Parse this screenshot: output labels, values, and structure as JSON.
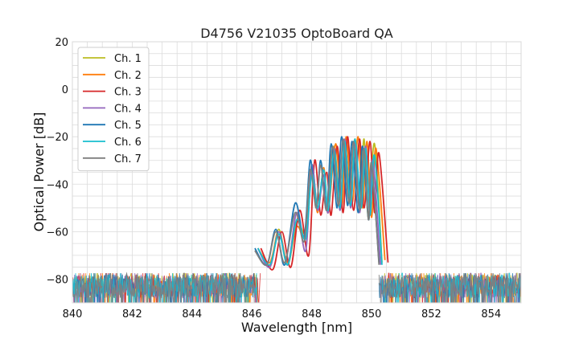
{
  "chart_data": {
    "type": "line",
    "title": "D4756 V21035 OptoBoard QA",
    "xlabel": "Wavelength [nm]",
    "ylabel": "Optical Power [dB]",
    "xlim": [
      840,
      855
    ],
    "ylim": [
      -90,
      20
    ],
    "xticks": [
      840,
      842,
      844,
      846,
      848,
      850,
      852,
      854
    ],
    "yticks": [
      -80,
      -60,
      -40,
      -20,
      0,
      20
    ],
    "xtick_labels": [
      "840",
      "842",
      "844",
      "846",
      "848",
      "850",
      "852",
      "854"
    ],
    "ytick_labels": [
      "−80",
      "−60",
      "−40",
      "−20",
      "0",
      "20"
    ],
    "grid": true,
    "legend_position": "top-left",
    "noise_floor": {
      "mean": -83,
      "spread": 10
    },
    "series": [
      {
        "name": "Ch. 1",
        "color": "#bcbd22",
        "points": [
          [
            846.2,
            -67
          ],
          [
            846.6,
            -74
          ],
          [
            846.9,
            -59
          ],
          [
            847.2,
            -74
          ],
          [
            847.5,
            -56
          ],
          [
            847.8,
            -60
          ],
          [
            848.0,
            -32
          ],
          [
            848.2,
            -50
          ],
          [
            848.4,
            -34
          ],
          [
            848.55,
            -51
          ],
          [
            848.75,
            -24
          ],
          [
            848.95,
            -50
          ],
          [
            849.1,
            -22
          ],
          [
            849.3,
            -47
          ],
          [
            849.45,
            -21
          ],
          [
            849.6,
            -49
          ],
          [
            849.75,
            -21
          ],
          [
            849.9,
            -55
          ],
          [
            850.1,
            -23
          ],
          [
            850.35,
            -73
          ]
        ]
      },
      {
        "name": "Ch. 2",
        "color": "#ff7f0e",
        "points": [
          [
            846.2,
            -67
          ],
          [
            846.6,
            -73
          ],
          [
            846.9,
            -60
          ],
          [
            847.2,
            -73
          ],
          [
            847.5,
            -58
          ],
          [
            847.8,
            -62
          ],
          [
            848.0,
            -34
          ],
          [
            848.2,
            -52
          ],
          [
            848.4,
            -33
          ],
          [
            848.55,
            -52
          ],
          [
            848.8,
            -23
          ],
          [
            849.0,
            -50
          ],
          [
            849.15,
            -20
          ],
          [
            849.35,
            -48
          ],
          [
            849.55,
            -20
          ],
          [
            849.7,
            -50
          ],
          [
            849.85,
            -22
          ],
          [
            850.0,
            -54
          ],
          [
            850.15,
            -25
          ],
          [
            850.45,
            -72
          ]
        ]
      },
      {
        "name": "Ch. 3",
        "color": "#d62728",
        "points": [
          [
            846.3,
            -67
          ],
          [
            846.7,
            -76
          ],
          [
            847.0,
            -60
          ],
          [
            847.3,
            -75
          ],
          [
            847.6,
            -51
          ],
          [
            847.9,
            -70
          ],
          [
            848.1,
            -30
          ],
          [
            848.3,
            -53
          ],
          [
            848.5,
            -35
          ],
          [
            848.65,
            -53
          ],
          [
            848.85,
            -24
          ],
          [
            849.05,
            -52
          ],
          [
            849.2,
            -20
          ],
          [
            849.4,
            -51
          ],
          [
            849.6,
            -21
          ],
          [
            849.75,
            -50
          ],
          [
            849.95,
            -22
          ],
          [
            850.1,
            -52
          ],
          [
            850.25,
            -27
          ],
          [
            850.55,
            -73
          ]
        ]
      },
      {
        "name": "Ch. 4",
        "color": "#9467bd",
        "points": [
          [
            846.2,
            -67
          ],
          [
            846.6,
            -75
          ],
          [
            846.9,
            -60
          ],
          [
            847.2,
            -74
          ],
          [
            847.5,
            -52
          ],
          [
            847.8,
            -68
          ],
          [
            848.0,
            -32
          ],
          [
            848.2,
            -51
          ],
          [
            848.4,
            -36
          ],
          [
            848.55,
            -52
          ],
          [
            848.75,
            -25
          ],
          [
            848.95,
            -51
          ],
          [
            849.1,
            -21
          ],
          [
            849.3,
            -50
          ],
          [
            849.45,
            -22
          ],
          [
            849.6,
            -52
          ],
          [
            849.8,
            -24
          ],
          [
            849.95,
            -53
          ],
          [
            850.05,
            -30
          ],
          [
            850.3,
            -74
          ]
        ]
      },
      {
        "name": "Ch. 5",
        "color": "#1f77b4",
        "points": [
          [
            846.1,
            -67
          ],
          [
            846.5,
            -74
          ],
          [
            846.8,
            -59
          ],
          [
            847.1,
            -74
          ],
          [
            847.45,
            -48
          ],
          [
            847.75,
            -62
          ],
          [
            847.95,
            -30
          ],
          [
            848.15,
            -50
          ],
          [
            848.3,
            -30
          ],
          [
            848.5,
            -51
          ],
          [
            848.65,
            -23
          ],
          [
            848.85,
            -50
          ],
          [
            849.0,
            -20
          ],
          [
            849.2,
            -49
          ],
          [
            849.35,
            -22
          ],
          [
            849.55,
            -52
          ],
          [
            849.7,
            -24
          ],
          [
            849.9,
            -55
          ],
          [
            850.0,
            -32
          ],
          [
            850.25,
            -73
          ]
        ]
      },
      {
        "name": "Ch. 6",
        "color": "#17becf",
        "points": [
          [
            846.2,
            -67
          ],
          [
            846.6,
            -74
          ],
          [
            846.9,
            -61
          ],
          [
            847.2,
            -74
          ],
          [
            847.5,
            -55
          ],
          [
            847.8,
            -63
          ],
          [
            848.0,
            -36
          ],
          [
            848.2,
            -50
          ],
          [
            848.4,
            -34
          ],
          [
            848.55,
            -51
          ],
          [
            848.75,
            -26
          ],
          [
            848.95,
            -50
          ],
          [
            849.1,
            -22
          ],
          [
            849.3,
            -49
          ],
          [
            849.45,
            -21
          ],
          [
            849.65,
            -50
          ],
          [
            849.8,
            -25
          ],
          [
            849.95,
            -53
          ],
          [
            850.1,
            -28
          ],
          [
            850.35,
            -74
          ]
        ]
      },
      {
        "name": "Ch. 7",
        "color": "#7f7f7f",
        "points": [
          [
            846.1,
            -68
          ],
          [
            846.5,
            -74
          ],
          [
            846.8,
            -60
          ],
          [
            847.1,
            -73
          ],
          [
            847.45,
            -52
          ],
          [
            847.75,
            -64
          ],
          [
            847.95,
            -34
          ],
          [
            848.15,
            -50
          ],
          [
            848.3,
            -32
          ],
          [
            848.5,
            -51
          ],
          [
            848.7,
            -24
          ],
          [
            848.9,
            -49
          ],
          [
            849.05,
            -21
          ],
          [
            849.25,
            -48
          ],
          [
            849.4,
            -22
          ],
          [
            849.6,
            -51
          ],
          [
            849.75,
            -25
          ],
          [
            849.9,
            -55
          ],
          [
            850.0,
            -31
          ],
          [
            850.25,
            -74
          ]
        ]
      }
    ]
  }
}
